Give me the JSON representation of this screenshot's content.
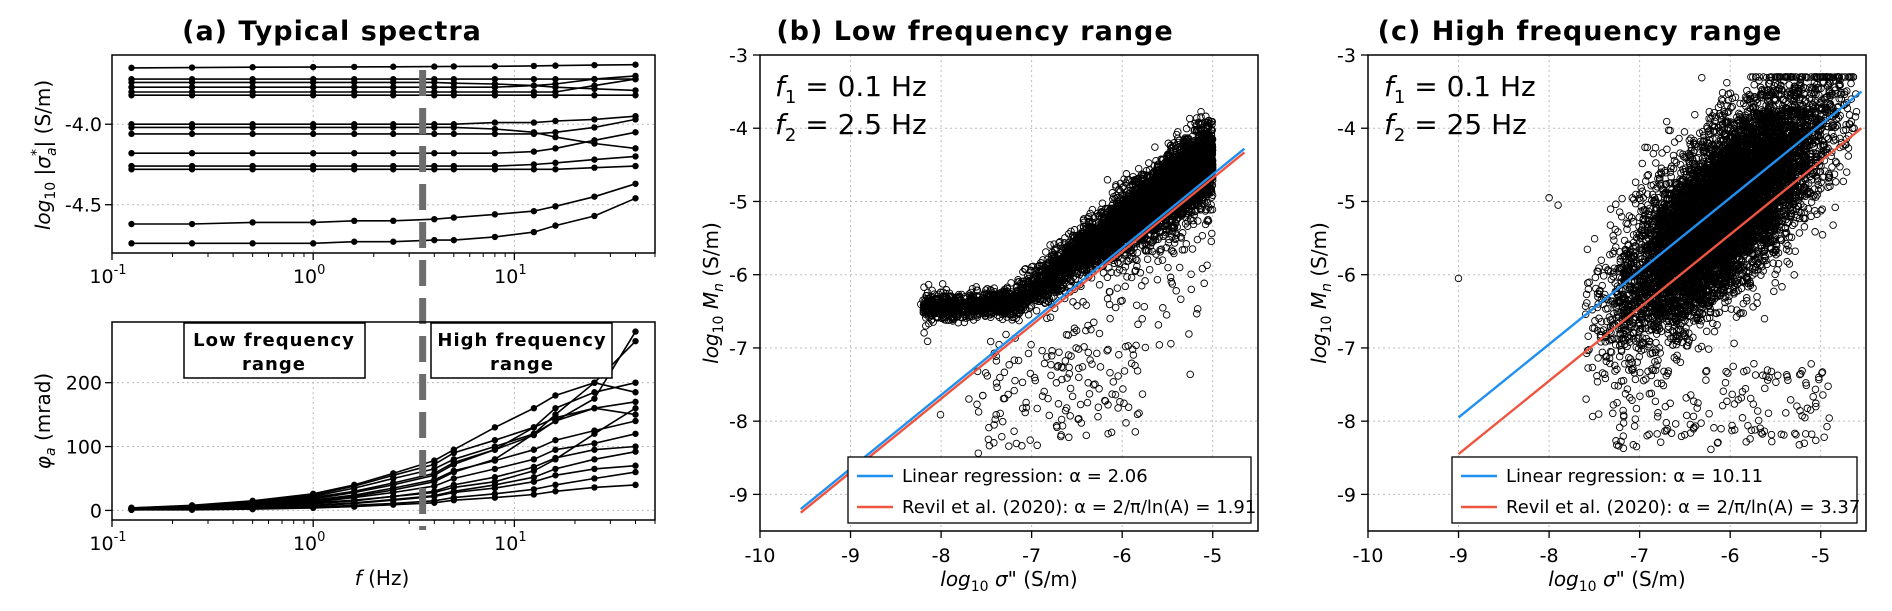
{
  "chart_data": [
    {
      "id": "a",
      "type": "line",
      "title": "(a) Typical spectra",
      "top": {
        "ylabel": "log10 |σ*a| (S/m)",
        "xscale": "log",
        "xlim": [
          0.1,
          50
        ],
        "ylim": [
          -4.8,
          -3.57
        ],
        "yticks": [
          "-4.0",
          "-4.5"
        ],
        "xticks": [
          "10^-1",
          "10^0",
          "10^1"
        ],
        "grid": true
      },
      "bottom": {
        "ylabel": "φa (mrad)",
        "xlabel": "f (Hz)",
        "xscale": "log",
        "xlim": [
          0.1,
          50
        ],
        "ylim": [
          -15,
          295
        ],
        "yticks": [
          "0",
          "100",
          "200"
        ],
        "xticks": [
          "10^-1",
          "10^0",
          "10^1"
        ],
        "grid": true
      },
      "x": [
        0.125,
        0.25,
        0.5,
        1,
        1.6,
        2.5,
        4,
        5,
        8,
        12.5,
        16,
        25,
        40
      ],
      "divider_frequency": 3.5,
      "labels": {
        "low": [
          "Low frequency",
          "range"
        ],
        "high": [
          "High frequency",
          "range"
        ]
      },
      "amplitude_series": [
        [
          -3.65,
          -3.648,
          -3.646,
          -3.645,
          -3.644,
          -3.643,
          -3.642,
          -3.641,
          -3.64,
          -3.638,
          -3.636,
          -3.633,
          -3.63
        ],
        [
          -3.72,
          -3.72,
          -3.72,
          -3.72,
          -3.72,
          -3.72,
          -3.72,
          -3.72,
          -3.72,
          -3.72,
          -3.72,
          -3.72,
          -3.72
        ],
        [
          -3.74,
          -3.74,
          -3.74,
          -3.74,
          -3.74,
          -3.74,
          -3.74,
          -3.745,
          -3.75,
          -3.76,
          -3.77,
          -3.78,
          -3.79
        ],
        [
          -3.77,
          -3.77,
          -3.77,
          -3.77,
          -3.77,
          -3.77,
          -3.77,
          -3.77,
          -3.77,
          -3.76,
          -3.75,
          -3.72,
          -3.7
        ],
        [
          -3.8,
          -3.8,
          -3.8,
          -3.8,
          -3.8,
          -3.8,
          -3.8,
          -3.8,
          -3.8,
          -3.8,
          -3.8,
          -3.76,
          -3.72
        ],
        [
          -3.82,
          -3.82,
          -3.82,
          -3.82,
          -3.82,
          -3.82,
          -3.82,
          -3.82,
          -3.82,
          -3.82,
          -3.82,
          -3.82,
          -3.82
        ],
        [
          -4.0,
          -4.0,
          -4.0,
          -4.0,
          -4.0,
          -4.0,
          -4.0,
          -4.0,
          -3.99,
          -3.99,
          -3.98,
          -3.97,
          -3.95
        ],
        [
          -4.02,
          -4.02,
          -4.02,
          -4.02,
          -4.02,
          -4.02,
          -4.02,
          -4.02,
          -4.03,
          -4.05,
          -4.08,
          -4.12,
          -4.15
        ],
        [
          -4.06,
          -4.06,
          -4.06,
          -4.06,
          -4.06,
          -4.06,
          -4.06,
          -4.06,
          -4.06,
          -4.06,
          -4.05,
          -4.02,
          -3.97
        ],
        [
          -4.18,
          -4.18,
          -4.18,
          -4.18,
          -4.18,
          -4.18,
          -4.18,
          -4.18,
          -4.18,
          -4.17,
          -4.15,
          -4.1,
          -4.05
        ],
        [
          -4.26,
          -4.26,
          -4.26,
          -4.26,
          -4.26,
          -4.26,
          -4.26,
          -4.26,
          -4.26,
          -4.25,
          -4.24,
          -4.22,
          -4.2
        ],
        [
          -4.28,
          -4.28,
          -4.28,
          -4.28,
          -4.28,
          -4.28,
          -4.28,
          -4.28,
          -4.28,
          -4.28,
          -4.28,
          -4.27,
          -4.26
        ],
        [
          -4.62,
          -4.62,
          -4.61,
          -4.61,
          -4.6,
          -4.6,
          -4.59,
          -4.58,
          -4.56,
          -4.54,
          -4.51,
          -4.45,
          -4.37
        ],
        [
          -4.74,
          -4.74,
          -4.74,
          -4.74,
          -4.73,
          -4.73,
          -4.72,
          -4.72,
          -4.7,
          -4.67,
          -4.63,
          -4.57,
          -4.46
        ]
      ],
      "phase_series": [
        [
          2,
          4,
          7,
          12,
          16,
          22,
          28,
          36,
          45,
          62,
          80,
          120,
          160
        ],
        [
          2,
          4,
          8,
          15,
          22,
          32,
          45,
          60,
          80,
          120,
          150,
          200,
          265
        ],
        [
          3,
          5,
          10,
          18,
          28,
          40,
          55,
          72,
          95,
          130,
          160,
          185,
          200
        ],
        [
          3,
          6,
          12,
          22,
          35,
          50,
          65,
          80,
          100,
          120,
          140,
          160,
          170
        ],
        [
          4,
          7,
          13,
          24,
          38,
          55,
          72,
          90,
          110,
          130,
          145,
          160,
          150
        ],
        [
          3,
          5,
          9,
          16,
          24,
          35,
          48,
          62,
          78,
          95,
          110,
          125,
          140
        ],
        [
          2,
          4,
          7,
          13,
          20,
          28,
          38,
          50,
          65,
          80,
          95,
          105,
          120
        ],
        [
          3,
          6,
          11,
          20,
          30,
          43,
          58,
          75,
          95,
          118,
          140,
          175,
          280
        ],
        [
          4,
          8,
          15,
          26,
          40,
          58,
          78,
          95,
          130,
          160,
          180,
          200,
          185
        ],
        [
          2,
          3,
          6,
          10,
          15,
          22,
          30,
          40,
          52,
          68,
          82,
          95,
          100
        ],
        [
          2,
          3,
          5,
          8,
          12,
          17,
          23,
          30,
          40,
          52,
          65,
          80,
          92
        ],
        [
          1,
          2,
          4,
          7,
          11,
          16,
          22,
          28,
          35,
          45,
          55,
          65,
          70
        ],
        [
          1,
          2,
          3,
          5,
          8,
          11,
          15,
          20,
          26,
          33,
          40,
          50,
          60
        ],
        [
          1,
          1,
          2,
          4,
          6,
          9,
          12,
          16,
          20,
          25,
          30,
          36,
          40
        ]
      ]
    },
    {
      "id": "b",
      "type": "scatter",
      "title": "(b) Low frequency range",
      "xlabel": "log10 σ\" (S/m)",
      "ylabel": "log10 Mn (S/m)",
      "xlim": [
        -10,
        -4.5
      ],
      "ylim": [
        -9.5,
        -3
      ],
      "xticks": [
        -10,
        -9,
        -8,
        -7,
        -6,
        -5
      ],
      "yticks": [
        -9,
        -8,
        -7,
        -6,
        -5,
        -4,
        -3
      ],
      "grid": true,
      "annotations": [
        "f1 = 0.1 Hz",
        "f2 = 2.5 Hz"
      ],
      "cloud_points_estimated": 6000,
      "series": [
        {
          "name": "Linear regression: α = 2.06",
          "color": "#1f8ff0",
          "x": [
            -9.55,
            -4.65
          ],
          "y": [
            -9.2,
            -4.28
          ]
        },
        {
          "name": "Revil et al. (2020): α = 2/π/ln(A) = 1.91",
          "color": "#ee5540",
          "x": [
            -9.55,
            -4.65
          ],
          "y": [
            -9.25,
            -4.33
          ]
        }
      ],
      "legend_position": "lower right"
    },
    {
      "id": "c",
      "type": "scatter",
      "title": "(c) High frequency range",
      "xlabel": "log10 σ\" (S/m)",
      "ylabel": "log10 Mn (S/m)",
      "xlim": [
        -10,
        -4.5
      ],
      "ylim": [
        -9.5,
        -3
      ],
      "xticks": [
        -10,
        -9,
        -8,
        -7,
        -6,
        -5
      ],
      "yticks": [
        -9,
        -8,
        -7,
        -6,
        -5,
        -4,
        -3
      ],
      "grid": true,
      "annotations": [
        "f1 = 0.1 Hz",
        "f2 = 25 Hz"
      ],
      "cloud_points_estimated": 9000,
      "series": [
        {
          "name": "Linear regression: α = 10.11",
          "color": "#1f8ff0",
          "x": [
            -9.0,
            -4.55
          ],
          "y": [
            -7.95,
            -3.5
          ]
        },
        {
          "name": "Revil et al. (2020): α = 2/π/ln(A) = 3.37",
          "color": "#ee5540",
          "x": [
            -9.0,
            -4.55
          ],
          "y": [
            -8.45,
            -4.0
          ]
        }
      ],
      "legend_position": "lower right"
    }
  ]
}
